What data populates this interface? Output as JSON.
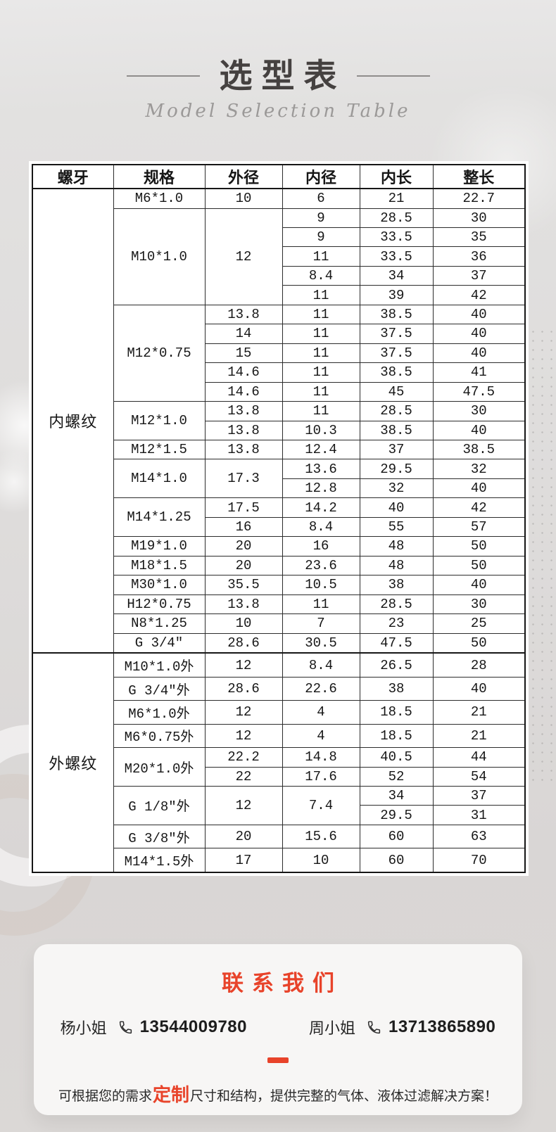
{
  "header": {
    "title": "选型表",
    "subtitle": "Model Selection Table"
  },
  "table": {
    "columns": [
      "螺牙",
      "规格",
      "外径",
      "内径",
      "内长",
      "整长"
    ],
    "sections": [
      {
        "group": "内螺纹",
        "rows": [
          [
            "M6*1.0",
            "10",
            "6",
            "21",
            "22.7"
          ],
          [
            {
              "t": "M10*1.0",
              "rs": 5
            },
            {
              "t": "12",
              "rs": 5
            },
            "9",
            "28.5",
            "30"
          ],
          [
            "9",
            "33.5",
            "35"
          ],
          [
            "11",
            "33.5",
            "36"
          ],
          [
            "8.4",
            "34",
            "37"
          ],
          [
            "11",
            "39",
            "42"
          ],
          [
            {
              "t": "M12*0.75",
              "rs": 5
            },
            "13.8",
            "11",
            "38.5",
            "40"
          ],
          [
            "14",
            "11",
            "37.5",
            "40"
          ],
          [
            "15",
            "11",
            "37.5",
            "40"
          ],
          [
            "14.6",
            "11",
            "38.5",
            "41"
          ],
          [
            "14.6",
            "11",
            "45",
            "47.5"
          ],
          [
            {
              "t": "M12*1.0",
              "rs": 2
            },
            "13.8",
            "11",
            "28.5",
            "30"
          ],
          [
            "13.8",
            "10.3",
            "38.5",
            "40"
          ],
          [
            "M12*1.5",
            "13.8",
            "12.4",
            "37",
            "38.5"
          ],
          [
            {
              "t": "M14*1.0",
              "rs": 2
            },
            {
              "t": "17.3",
              "rs": 2
            },
            "13.6",
            "29.5",
            "32"
          ],
          [
            "12.8",
            "32",
            "40"
          ],
          [
            {
              "t": "M14*1.25",
              "rs": 2
            },
            "17.5",
            "14.2",
            "40",
            "42"
          ],
          [
            "16",
            "8.4",
            "55",
            "57"
          ],
          [
            "M19*1.0",
            "20",
            "16",
            "48",
            "50"
          ],
          [
            "M18*1.5",
            "20",
            "23.6",
            "48",
            "50"
          ],
          [
            "M30*1.0",
            "35.5",
            "10.5",
            "38",
            "40"
          ],
          [
            "H12*0.75",
            "13.8",
            "11",
            "28.5",
            "30"
          ],
          [
            "N8*1.25",
            "10",
            "7",
            "23",
            "25"
          ],
          [
            "G 3/4″",
            "28.6",
            "30.5",
            "47.5",
            "50"
          ]
        ]
      },
      {
        "group": "外螺纹",
        "rows": [
          [
            "M10*1.0外",
            "12",
            "8.4",
            "26.5",
            "28"
          ],
          [
            "G 3/4″外",
            "28.6",
            "22.6",
            "38",
            "40"
          ],
          [
            "M6*1.0外",
            "12",
            "4",
            "18.5",
            "21"
          ],
          [
            "M6*0.75外",
            "12",
            "4",
            "18.5",
            "21"
          ],
          [
            {
              "t": "M20*1.0外",
              "rs": 2
            },
            "22.2",
            "14.8",
            "40.5",
            "44"
          ],
          [
            "22",
            "17.6",
            "52",
            "54"
          ],
          [
            {
              "t": "G 1/8″外",
              "rs": 2
            },
            {
              "t": "12",
              "rs": 2
            },
            {
              "t": "7.4",
              "rs": 2
            },
            "34",
            "37"
          ],
          [
            "29.5",
            "31"
          ],
          [
            "G 3/8″外",
            "20",
            "15.6",
            "60",
            "63"
          ],
          [
            "M14*1.5外",
            "17",
            "10",
            "60",
            "70"
          ]
        ]
      }
    ]
  },
  "contact": {
    "title": "联系我们",
    "people": [
      {
        "name": "杨小姐",
        "phone": "13544009780"
      },
      {
        "name": "周小姐",
        "phone": "13713865890"
      }
    ],
    "note": {
      "prefix": "可根据您的需求",
      "highlight": "定制",
      "suffix": "尺寸和结构，提供完整的气体、液体过滤解决方案！"
    }
  },
  "icons": {
    "phone": "phone-handset-icon"
  },
  "colors": {
    "accent": "#e8432a",
    "title_text": "#454140",
    "table_text": "#161616",
    "card_bg": "#f7f6f5"
  }
}
